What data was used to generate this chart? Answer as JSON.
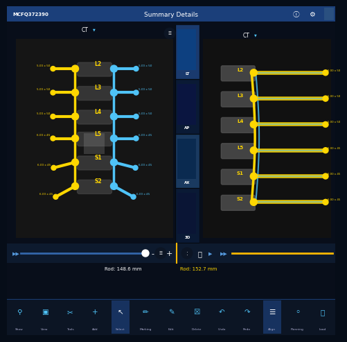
{
  "title": "Summary Details",
  "patient_id": "MCFQ372390",
  "bg_color": "#060d18",
  "header_color": "#1b3f7a",
  "toolbar_bg": "#0c1524",
  "scrub_bg": "#0d1a2e",
  "panel_dark": "#080e1a",
  "ct_bg": "#1a1a1a",
  "yellow": "#FFD700",
  "blue": "#4FC3F7",
  "spine_labels_left": [
    "L2",
    "L3",
    "L4",
    "L5",
    "S1",
    "S2"
  ],
  "spine_labels_right": [
    "L2",
    "L3",
    "L4",
    "L5",
    "S1",
    "S2"
  ],
  "screw_sizes_left": [
    "5.00 x 50",
    "5.00 x 50",
    "5.00 x 50",
    "6.00 x 45",
    "6.00 x 45",
    "6.00 x 45"
  ],
  "screw_sizes_right_left": [
    "5.00 x 50",
    "5.00 x 50",
    "5.00 x 50",
    "6.00 x 45",
    "6.00 x 45",
    "6.00 x 45"
  ],
  "screw_sizes_right_panel": [
    "6.00 x 50",
    "5.00 x 50",
    "5.00 x 50",
    "6.00 x 45",
    "6.00 x 45",
    "6.00 x 45"
  ],
  "rod_left": "Rod: 148.6 mm",
  "rod_right": "Rod: 152.7 mm",
  "view_tabs": [
    "LT",
    "AP",
    "AX",
    "3D"
  ],
  "toolbar_icons": [
    "Show",
    "View",
    "Tools",
    "Add",
    "Select",
    "Marking",
    "Edit",
    "Delete",
    "Undo",
    "Redo",
    "Align",
    "Planning",
    "Load"
  ]
}
